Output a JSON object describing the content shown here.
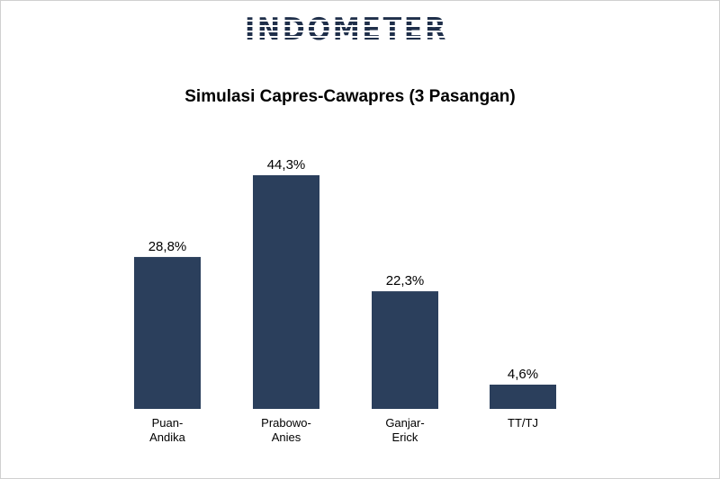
{
  "logo": {
    "text": "INDOMETER"
  },
  "colors": {
    "bar": "#2b3f5c",
    "logo": "#1f2f4a",
    "text": "#000000"
  },
  "chart_data": {
    "type": "bar",
    "title": "Simulasi Capres-Cawapres (3 Pasangan)",
    "categories": [
      [
        "Puan-",
        "Andika"
      ],
      [
        "Prabowo-",
        "Anies"
      ],
      [
        "Ganjar-",
        "Erick"
      ],
      [
        "TT/TJ"
      ]
    ],
    "values": [
      28.8,
      44.3,
      22.3,
      4.6
    ],
    "value_labels": [
      "28,8%",
      "44,3%",
      "22,3%",
      "4,6%"
    ],
    "xlabel": "",
    "ylabel": "",
    "ylim": [
      0,
      50
    ],
    "grid": false,
    "legend": "none"
  }
}
